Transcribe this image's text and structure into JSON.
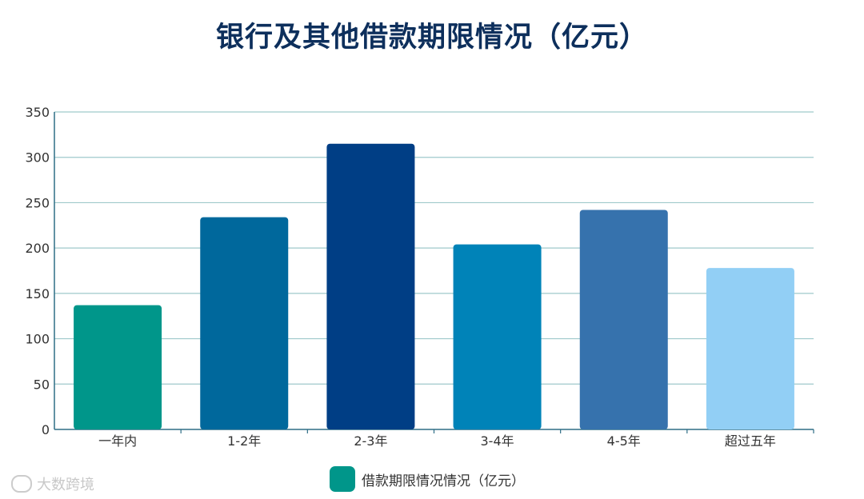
{
  "page_title": "银行及其他借款期限情况（亿元）",
  "watermark": {
    "text": "大数跨境",
    "icon": "logo-icon"
  },
  "chart_data": {
    "type": "bar",
    "title": "银行及其他借款期限情况（亿元）",
    "categories": [
      "一年内",
      "1-2年",
      "2-3年",
      "3-4年",
      "4-5年",
      "超过五年"
    ],
    "series": [
      {
        "name": "借款期限情况情况（亿元）",
        "values": [
          137,
          234,
          315,
          204,
          242,
          178
        ]
      }
    ],
    "bar_colors": [
      "#00968a",
      "#00689c",
      "#003e85",
      "#0083b8",
      "#3672ad",
      "#92cff5"
    ],
    "legend_color": "#00968a",
    "ylim": [
      0,
      350
    ],
    "yticks": [
      0,
      50,
      100,
      150,
      200,
      250,
      300,
      350
    ],
    "grid": true,
    "grid_color": "#9fc9cb",
    "axis_color": "#2f6e86",
    "legend_position": "bottom",
    "xlabel": "",
    "ylabel": ""
  }
}
